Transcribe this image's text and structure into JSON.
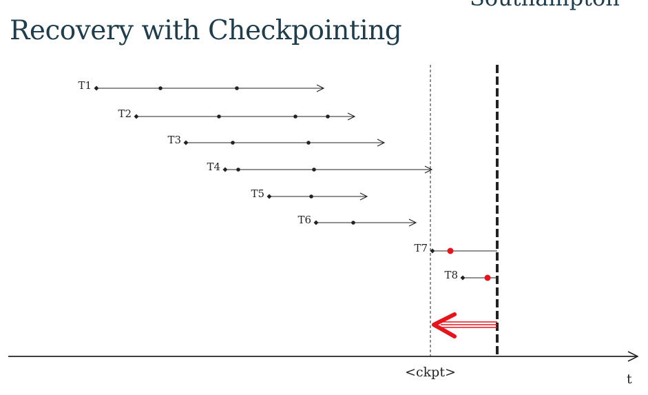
{
  "slide": {
    "title": "Recovery with Checkpointing",
    "logo_fragment": "Southampton"
  },
  "diagram": {
    "axis_label": "t",
    "checkpoint_label": "<ckpt>",
    "transactions": [
      {
        "label": "T1",
        "start": 140,
        "dots": [
          233,
          344
        ],
        "end": 470,
        "arrow": true
      },
      {
        "label": "T2",
        "start": 198,
        "dots": [
          318,
          429,
          476
        ],
        "end": 515,
        "arrow": true
      },
      {
        "label": "T3",
        "start": 270,
        "dots": [
          338,
          448
        ],
        "end": 558,
        "arrow": true
      },
      {
        "label": "T4",
        "start": 327,
        "dots": [
          346,
          456
        ],
        "end": 627,
        "arrow": true
      },
      {
        "label": "T5",
        "start": 391,
        "dots": [
          452
        ],
        "end": 533,
        "arrow": true
      },
      {
        "label": "T6",
        "start": 459,
        "dots": [
          513
        ],
        "end": 604,
        "arrow": true
      },
      {
        "label": "T7",
        "start": 628,
        "dots": [],
        "red_dots": [
          654
        ],
        "end": 722,
        "arrow": false
      },
      {
        "label": "T8",
        "start": 672,
        "dots": [],
        "red_dots": [
          708
        ],
        "end": 722,
        "arrow": false
      }
    ],
    "colors": {
      "line": "#222222",
      "red": "#e8141c",
      "title": "#1f3d4c"
    }
  }
}
